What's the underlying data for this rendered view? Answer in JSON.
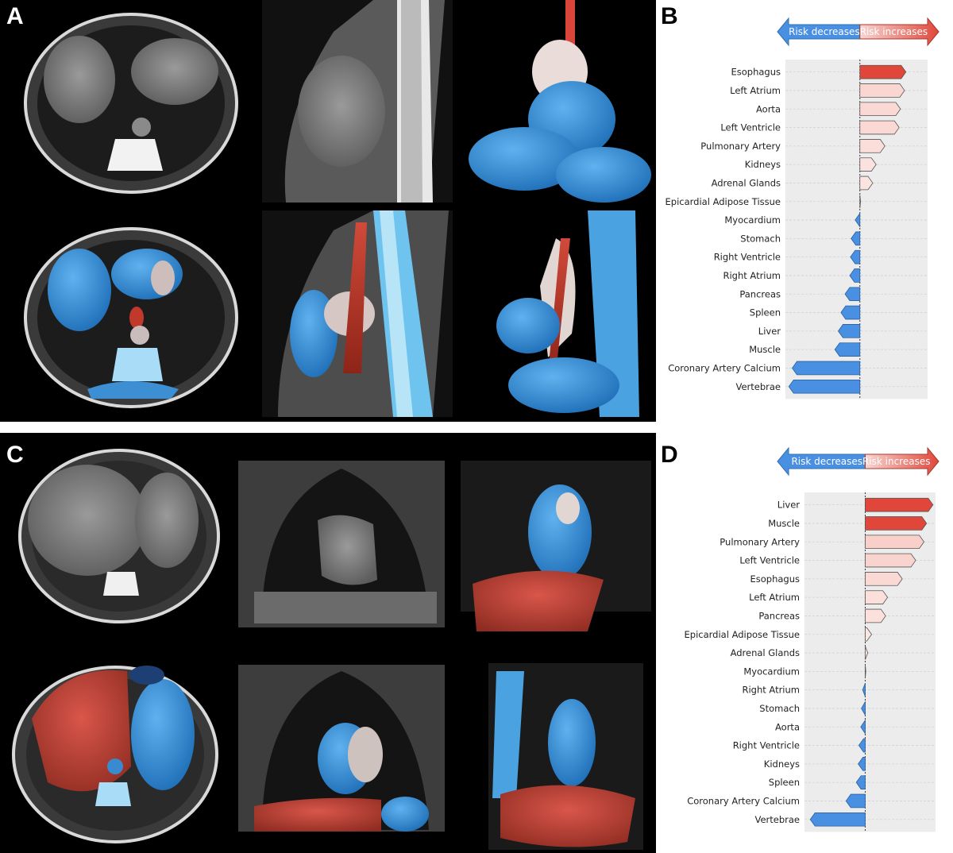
{
  "panels": {
    "A": {
      "letter": "A"
    },
    "B": {
      "letter": "B"
    },
    "C": {
      "letter": "C"
    },
    "D": {
      "letter": "D"
    }
  },
  "legend": {
    "decrease_label": "Risk decreases",
    "increase_label": "Risk increases",
    "decrease_color": "#4a90e2",
    "increase_color": "#e0473a"
  },
  "chart_data": [
    {
      "type": "bar",
      "orientation": "horizontal",
      "panel": "B",
      "categories": [
        "Esophagus",
        "Left Atrium",
        "Aorta",
        "Left Ventricle",
        "Pulmonary Artery",
        "Kidneys",
        "Adrenal Glands",
        "Epicardial Adipose Tissue",
        "Myocardium",
        "Stomach",
        "Right Ventricle",
        "Right Atrium",
        "Pancreas",
        "Spleen",
        "Liver",
        "Muscle",
        "Coronary Artery Calcium",
        "Vertebrae"
      ],
      "values": [
        0.68,
        0.66,
        0.6,
        0.58,
        0.37,
        0.24,
        0.19,
        0.01,
        -0.07,
        -0.13,
        -0.14,
        -0.15,
        -0.22,
        -0.28,
        -0.32,
        -0.37,
        -1.0,
        -1.05
      ],
      "xlim": [
        -1.1,
        1.0
      ],
      "grid": true,
      "legend": "top-right arrows"
    },
    {
      "type": "bar",
      "orientation": "horizontal",
      "panel": "D",
      "categories": [
        "Liver",
        "Muscle",
        "Pulmonary Artery",
        "Left Ventricle",
        "Esophagus",
        "Left Atrium",
        "Pancreas",
        "Epicardial Adipose Tissue",
        "Adrenal Glands",
        "Myocardium",
        "Right Atrium",
        "Stomach",
        "Aorta",
        "Right Ventricle",
        "Kidneys",
        "Spleen",
        "Coronary Artery Calcium",
        "Vertebrae"
      ],
      "values": [
        1.06,
        0.96,
        0.92,
        0.79,
        0.58,
        0.35,
        0.32,
        0.1,
        0.04,
        0.01,
        -0.04,
        -0.06,
        -0.07,
        -0.1,
        -0.11,
        -0.14,
        -0.3,
        -0.86
      ],
      "xlim": [
        -0.95,
        1.1
      ],
      "grid": true,
      "legend": "top-right arrows"
    }
  ]
}
